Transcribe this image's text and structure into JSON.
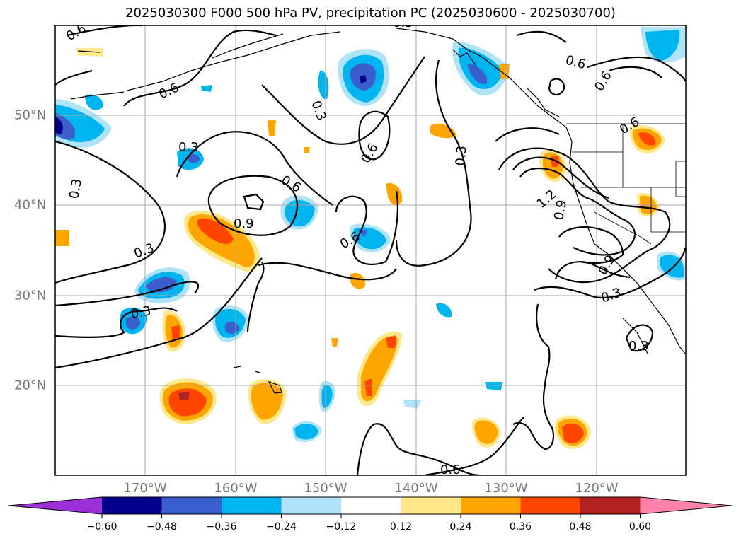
{
  "title": "2025030300 F000 500 hPa PV, precipitation PC (2025030600 - 2025030700)",
  "lon_labels": [
    "170°W",
    "160°W",
    "150°W",
    "140°W",
    "130°W",
    "120°W"
  ],
  "lat_labels": [
    "50°N",
    "40°N",
    "30°N",
    "20°N"
  ],
  "contour_labels": [
    "0.6",
    "0.6",
    "0.3",
    "0.3",
    "0.6",
    "0.9",
    "0.3",
    "0.3",
    "0.6",
    "0.6",
    "0.3",
    "0.6",
    "0.6",
    "1.2",
    "0.9",
    "0.9",
    "0.3",
    "0.3",
    "0.3",
    "0.6",
    "0.6",
    "0.3"
  ],
  "colorbar": {
    "tick_labels": [
      "−0.60",
      "−0.48",
      "−0.36",
      "−0.24",
      "−0.12",
      "0.12",
      "0.24",
      "0.36",
      "0.48",
      "0.60"
    ],
    "colors": [
      "#9b30d8",
      "#00008b",
      "#3a5fcd",
      "#00b4f0",
      "#aee3f8",
      "#ffffff",
      "#ffe88a",
      "#ffa500",
      "#ff4500",
      "#b22222",
      "#ff82ab"
    ]
  },
  "palette": {
    "grid": "#aaaaaa",
    "coast": "#000000",
    "contour": "#000000"
  }
}
